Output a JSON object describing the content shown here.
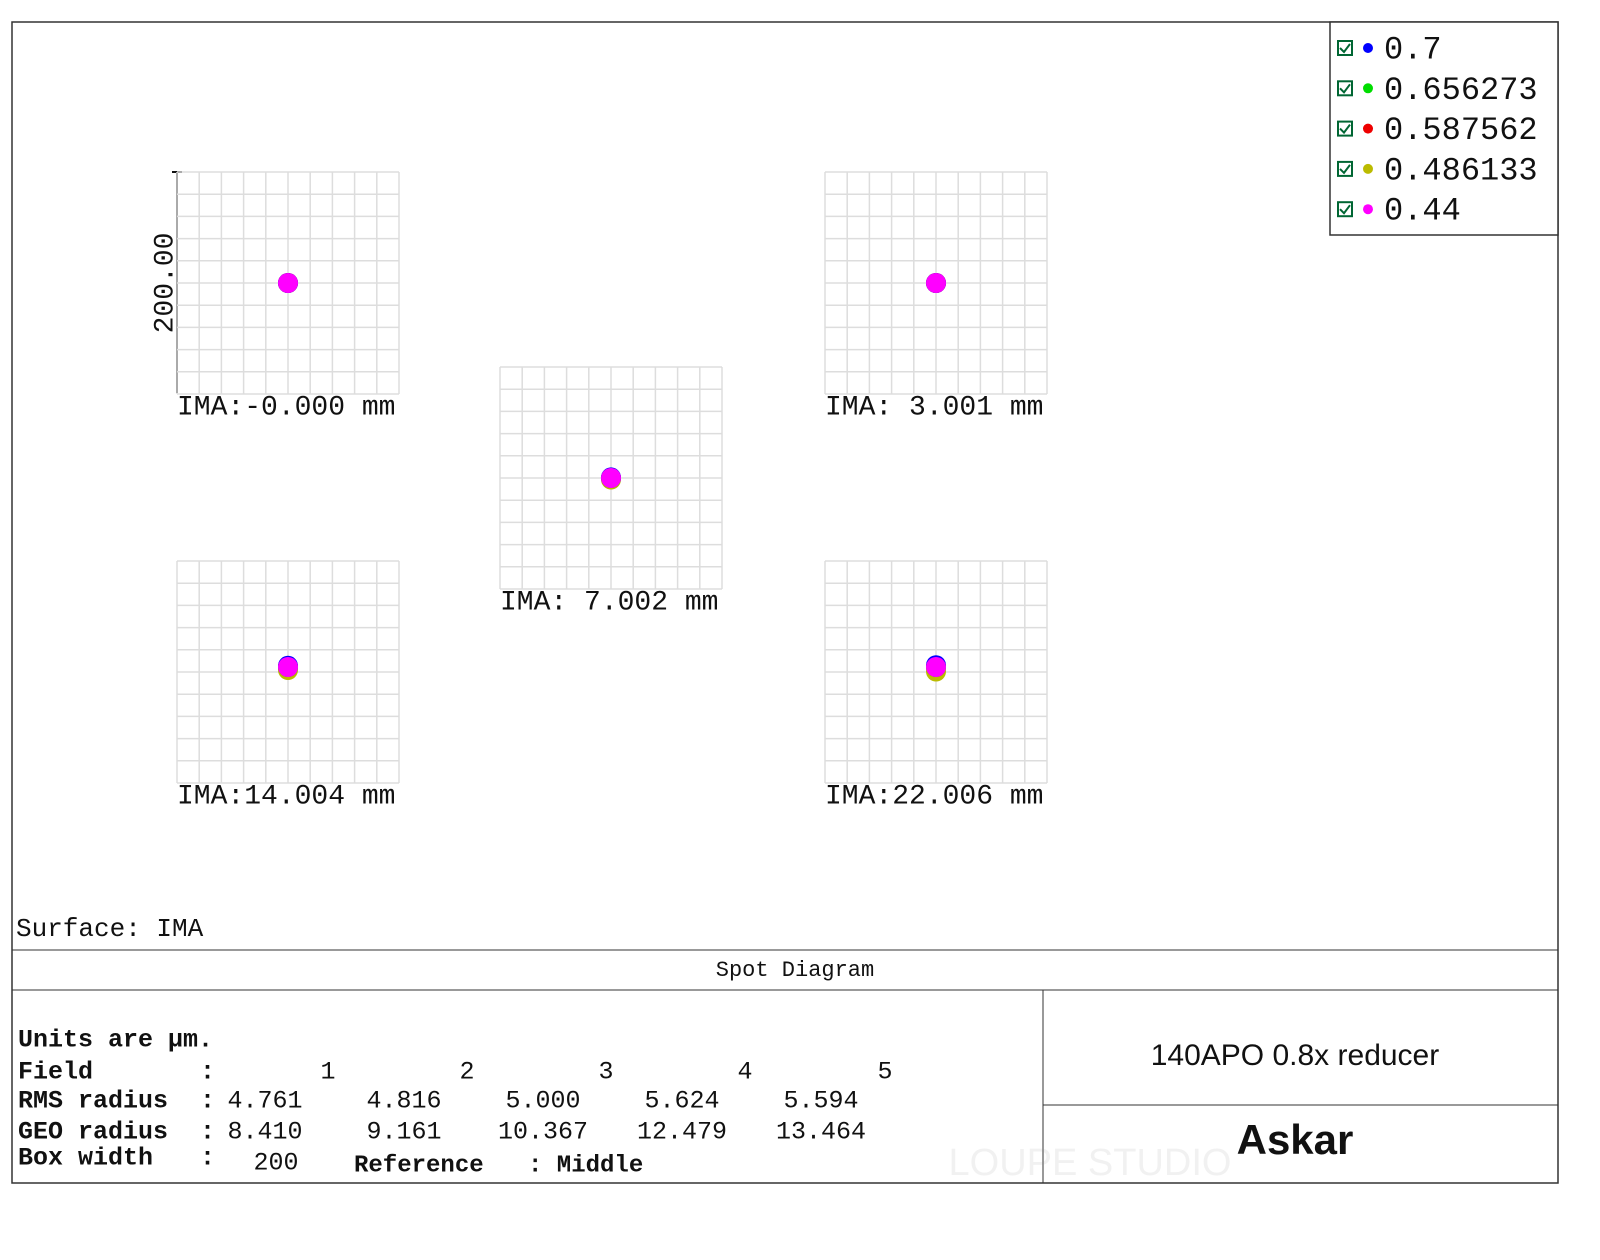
{
  "legend": [
    {
      "name": "0.7",
      "color": "#0000ff"
    },
    {
      "name": "0.656273",
      "color": "#00dd00"
    },
    {
      "name": "0.587562",
      "color": "#ee0000"
    },
    {
      "name": "0.486133",
      "color": "#bbbb00"
    },
    {
      "name": "0.44",
      "color": "#ff00ff"
    }
  ],
  "scale_label": "200.00",
  "fields": [
    {
      "label": "IMA:-0.000 mm"
    },
    {
      "label": "IMA: 3.001 mm"
    },
    {
      "label": "IMA: 7.002 mm"
    },
    {
      "label": "IMA:14.004 mm"
    },
    {
      "label": "IMA:22.006 mm"
    }
  ],
  "surface": "Surface: IMA",
  "title": "Spot Diagram",
  "info": {
    "units": "Units are µm.",
    "separator": ":",
    "field": {
      "label": "Field",
      "values": [
        "1",
        "2",
        "3",
        "4",
        "5"
      ]
    },
    "rms": {
      "label": "RMS radius",
      "values": [
        "4.761",
        "4.816",
        "5.000",
        "5.624",
        "5.594"
      ]
    },
    "geo": {
      "label": "GEO radius",
      "values": [
        "8.410",
        "9.161",
        "10.367",
        "12.479",
        "13.464"
      ]
    },
    "box": {
      "label": "Box width",
      "value": "200"
    },
    "reference": {
      "label": "Reference",
      "value": ": Middle"
    }
  },
  "product": "140APO 0.8x reducer",
  "brand": "Askar",
  "watermark": "LOUPE STUDIO"
}
